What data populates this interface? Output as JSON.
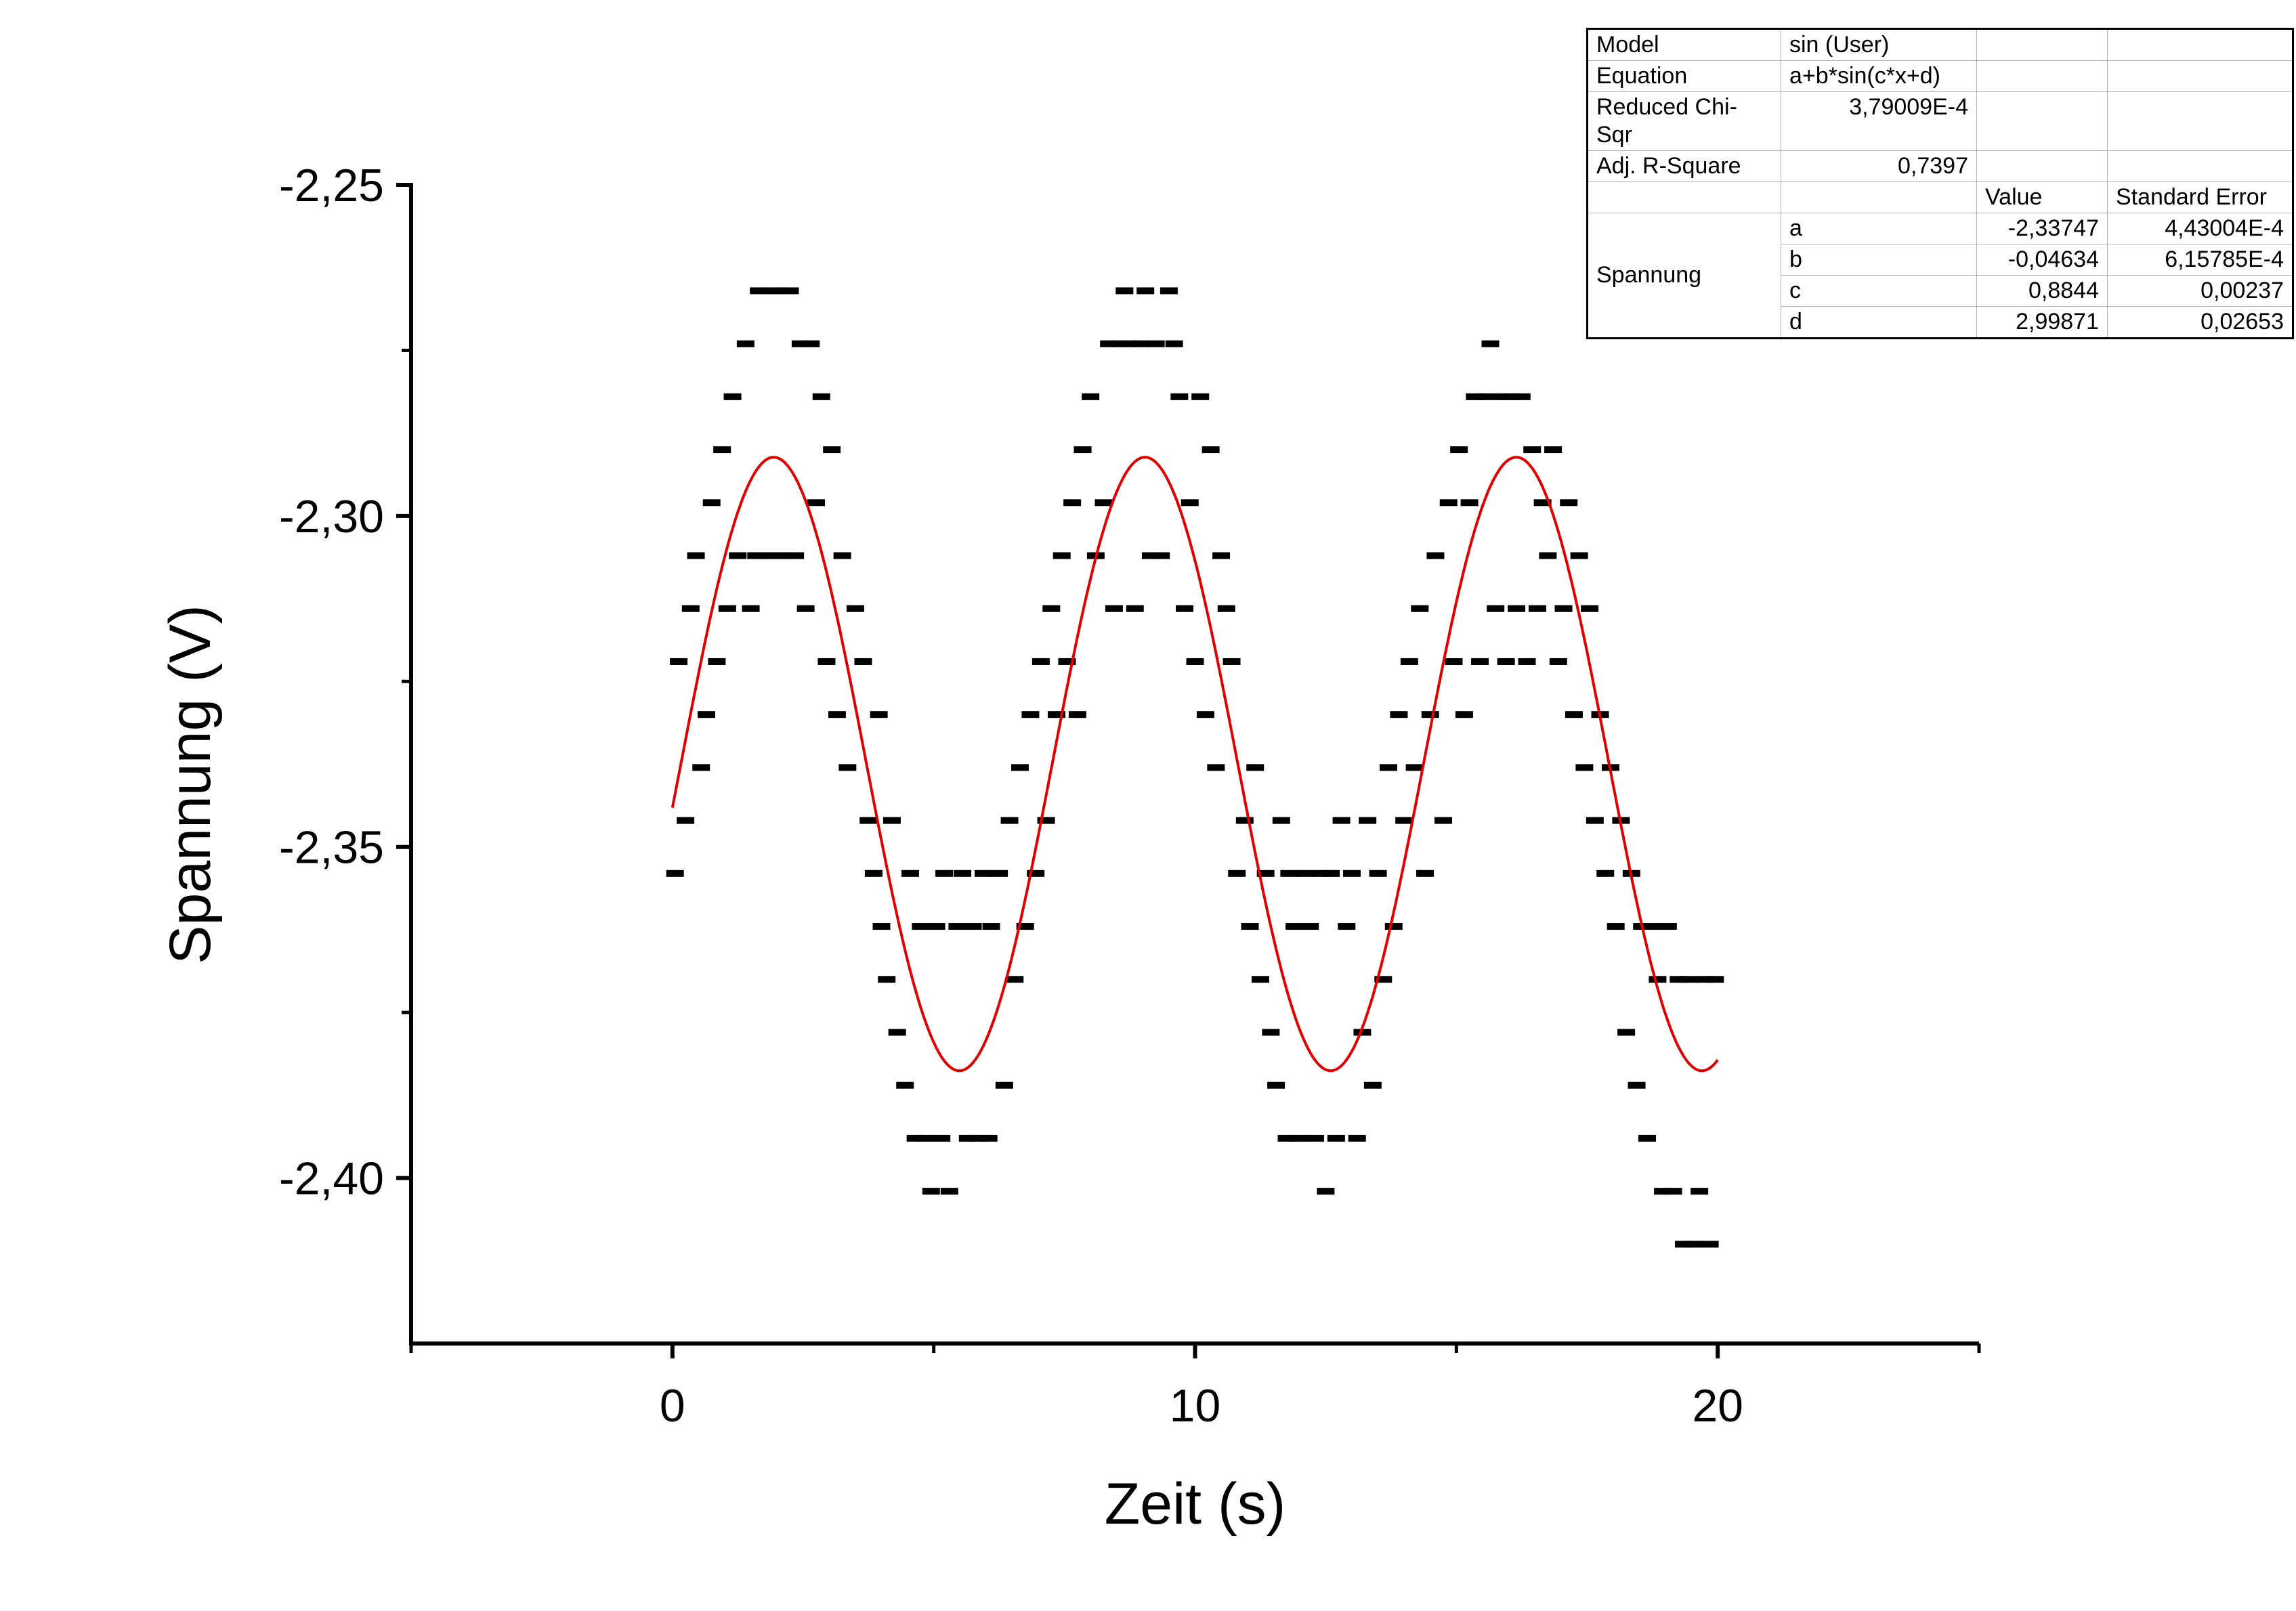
{
  "chart_data": {
    "type": "scatter",
    "xlabel": "Zeit (s)",
    "ylabel": "Spannung (V)",
    "xlim": [
      -5,
      25
    ],
    "ylim": [
      -2.425,
      -2.25
    ],
    "x_ticks": [
      0,
      10,
      20
    ],
    "x_tick_labels": [
      "0",
      "10",
      "20"
    ],
    "x_minor_ticks": [
      -5,
      5,
      15,
      25
    ],
    "y_ticks": [
      -2.25,
      -2.3,
      -2.35,
      -2.4
    ],
    "y_tick_labels": [
      "-2,25",
      "-2,30",
      "-2,35",
      "-2,40"
    ],
    "y_minor_ticks": [
      -2.275,
      -2.325,
      -2.375
    ],
    "grid": false,
    "series": [
      {
        "name": "Spannung",
        "marker": "dash",
        "color": "#000000",
        "points": [
          [
            0.05,
            -2.354
          ],
          [
            0.12,
            -2.322
          ],
          [
            0.25,
            -2.346
          ],
          [
            0.35,
            -2.314
          ],
          [
            0.45,
            -2.306
          ],
          [
            0.55,
            -2.338
          ],
          [
            0.65,
            -2.33
          ],
          [
            0.75,
            -2.298
          ],
          [
            0.85,
            -2.322
          ],
          [
            0.95,
            -2.29
          ],
          [
            1.05,
            -2.314
          ],
          [
            1.15,
            -2.282
          ],
          [
            1.25,
            -2.306
          ],
          [
            1.4,
            -2.274
          ],
          [
            1.5,
            -2.314
          ],
          [
            1.6,
            -2.306
          ],
          [
            1.65,
            -2.266
          ],
          [
            1.75,
            -2.306
          ],
          [
            1.85,
            -2.266
          ],
          [
            1.95,
            -2.306
          ],
          [
            2.05,
            -2.266
          ],
          [
            2.15,
            -2.306
          ],
          [
            2.25,
            -2.266
          ],
          [
            2.35,
            -2.306
          ],
          [
            2.45,
            -2.274
          ],
          [
            2.55,
            -2.314
          ],
          [
            2.65,
            -2.274
          ],
          [
            2.75,
            -2.298
          ],
          [
            2.85,
            -2.282
          ],
          [
            2.95,
            -2.322
          ],
          [
            3.05,
            -2.29
          ],
          [
            3.15,
            -2.33
          ],
          [
            3.25,
            -2.306
          ],
          [
            3.35,
            -2.338
          ],
          [
            3.5,
            -2.314
          ],
          [
            3.65,
            -2.322
          ],
          [
            3.75,
            -2.346
          ],
          [
            3.85,
            -2.354
          ],
          [
            3.95,
            -2.33
          ],
          [
            4.0,
            -2.362
          ],
          [
            4.1,
            -2.37
          ],
          [
            4.2,
            -2.346
          ],
          [
            4.3,
            -2.378
          ],
          [
            4.45,
            -2.386
          ],
          [
            4.55,
            -2.354
          ],
          [
            4.65,
            -2.394
          ],
          [
            4.75,
            -2.362
          ],
          [
            4.85,
            -2.394
          ],
          [
            4.95,
            -2.402
          ],
          [
            5.05,
            -2.362
          ],
          [
            5.15,
            -2.394
          ],
          [
            5.2,
            -2.354
          ],
          [
            5.3,
            -2.402
          ],
          [
            5.45,
            -2.362
          ],
          [
            5.55,
            -2.354
          ],
          [
            5.65,
            -2.394
          ],
          [
            5.75,
            -2.362
          ],
          [
            5.85,
            -2.394
          ],
          [
            5.95,
            -2.354
          ],
          [
            6.05,
            -2.394
          ],
          [
            6.1,
            -2.362
          ],
          [
            6.25,
            -2.354
          ],
          [
            6.35,
            -2.386
          ],
          [
            6.45,
            -2.346
          ],
          [
            6.55,
            -2.37
          ],
          [
            6.65,
            -2.338
          ],
          [
            6.75,
            -2.362
          ],
          [
            6.85,
            -2.33
          ],
          [
            6.95,
            -2.354
          ],
          [
            7.05,
            -2.322
          ],
          [
            7.15,
            -2.346
          ],
          [
            7.25,
            -2.314
          ],
          [
            7.35,
            -2.33
          ],
          [
            7.45,
            -2.306
          ],
          [
            7.55,
            -2.322
          ],
          [
            7.65,
            -2.298
          ],
          [
            7.75,
            -2.33
          ],
          [
            7.85,
            -2.29
          ],
          [
            8.0,
            -2.282
          ],
          [
            8.1,
            -2.306
          ],
          [
            8.25,
            -2.298
          ],
          [
            8.35,
            -2.274
          ],
          [
            8.45,
            -2.314
          ],
          [
            8.55,
            -2.274
          ],
          [
            8.65,
            -2.266
          ],
          [
            8.75,
            -2.274
          ],
          [
            8.85,
            -2.314
          ],
          [
            8.95,
            -2.274
          ],
          [
            9.05,
            -2.266
          ],
          [
            9.15,
            -2.306
          ],
          [
            9.25,
            -2.274
          ],
          [
            9.35,
            -2.306
          ],
          [
            9.5,
            -2.266
          ],
          [
            9.6,
            -2.274
          ],
          [
            9.7,
            -2.282
          ],
          [
            9.8,
            -2.314
          ],
          [
            9.9,
            -2.298
          ],
          [
            10.0,
            -2.322
          ],
          [
            10.1,
            -2.282
          ],
          [
            10.2,
            -2.33
          ],
          [
            10.3,
            -2.29
          ],
          [
            10.4,
            -2.338
          ],
          [
            10.5,
            -2.306
          ],
          [
            10.6,
            -2.314
          ],
          [
            10.7,
            -2.322
          ],
          [
            10.8,
            -2.354
          ],
          [
            10.95,
            -2.346
          ],
          [
            11.05,
            -2.362
          ],
          [
            11.15,
            -2.338
          ],
          [
            11.25,
            -2.37
          ],
          [
            11.35,
            -2.354
          ],
          [
            11.45,
            -2.378
          ],
          [
            11.55,
            -2.386
          ],
          [
            11.65,
            -2.346
          ],
          [
            11.75,
            -2.394
          ],
          [
            11.8,
            -2.354
          ],
          [
            11.9,
            -2.362
          ],
          [
            12.0,
            -2.394
          ],
          [
            12.1,
            -2.354
          ],
          [
            12.2,
            -2.362
          ],
          [
            12.3,
            -2.394
          ],
          [
            12.4,
            -2.354
          ],
          [
            12.5,
            -2.402
          ],
          [
            12.6,
            -2.354
          ],
          [
            12.7,
            -2.394
          ],
          [
            12.8,
            -2.346
          ],
          [
            12.9,
            -2.362
          ],
          [
            13.0,
            -2.354
          ],
          [
            13.1,
            -2.394
          ],
          [
            13.2,
            -2.378
          ],
          [
            13.3,
            -2.346
          ],
          [
            13.4,
            -2.386
          ],
          [
            13.5,
            -2.354
          ],
          [
            13.6,
            -2.37
          ],
          [
            13.7,
            -2.338
          ],
          [
            13.8,
            -2.362
          ],
          [
            13.9,
            -2.33
          ],
          [
            14.0,
            -2.346
          ],
          [
            14.1,
            -2.322
          ],
          [
            14.2,
            -2.338
          ],
          [
            14.3,
            -2.314
          ],
          [
            14.4,
            -2.354
          ],
          [
            14.5,
            -2.33
          ],
          [
            14.6,
            -2.306
          ],
          [
            14.75,
            -2.346
          ],
          [
            14.85,
            -2.298
          ],
          [
            14.95,
            -2.322
          ],
          [
            15.05,
            -2.29
          ],
          [
            15.15,
            -2.33
          ],
          [
            15.25,
            -2.298
          ],
          [
            15.35,
            -2.282
          ],
          [
            15.45,
            -2.322
          ],
          [
            15.55,
            -2.282
          ],
          [
            15.65,
            -2.274
          ],
          [
            15.75,
            -2.314
          ],
          [
            15.85,
            -2.282
          ],
          [
            15.95,
            -2.322
          ],
          [
            16.05,
            -2.282
          ],
          [
            16.15,
            -2.314
          ],
          [
            16.25,
            -2.282
          ],
          [
            16.35,
            -2.322
          ],
          [
            16.45,
            -2.29
          ],
          [
            16.55,
            -2.314
          ],
          [
            16.65,
            -2.298
          ],
          [
            16.75,
            -2.306
          ],
          [
            16.85,
            -2.29
          ],
          [
            16.95,
            -2.322
          ],
          [
            17.05,
            -2.314
          ],
          [
            17.15,
            -2.298
          ],
          [
            17.25,
            -2.33
          ],
          [
            17.35,
            -2.306
          ],
          [
            17.45,
            -2.338
          ],
          [
            17.55,
            -2.314
          ],
          [
            17.65,
            -2.346
          ],
          [
            17.75,
            -2.33
          ],
          [
            17.85,
            -2.354
          ],
          [
            17.95,
            -2.338
          ],
          [
            18.05,
            -2.362
          ],
          [
            18.15,
            -2.346
          ],
          [
            18.25,
            -2.378
          ],
          [
            18.35,
            -2.354
          ],
          [
            18.45,
            -2.386
          ],
          [
            18.55,
            -2.362
          ],
          [
            18.65,
            -2.394
          ],
          [
            18.75,
            -2.362
          ],
          [
            18.85,
            -2.37
          ],
          [
            18.95,
            -2.402
          ],
          [
            19.05,
            -2.362
          ],
          [
            19.15,
            -2.402
          ],
          [
            19.25,
            -2.37
          ],
          [
            19.35,
            -2.41
          ],
          [
            19.45,
            -2.37
          ],
          [
            19.55,
            -2.41
          ],
          [
            19.65,
            -2.402
          ],
          [
            19.75,
            -2.37
          ],
          [
            19.85,
            -2.41
          ],
          [
            19.95,
            -2.37
          ]
        ]
      },
      {
        "name": "sin (User)",
        "type": "line",
        "color": "#e00000",
        "model": {
          "a": -2.33747,
          "b": -0.04634,
          "c": 0.8844,
          "d": 2.99871
        },
        "x_range": [
          0,
          20
        ]
      }
    ],
    "fit_table": {
      "rows": [
        {
          "label": "Model",
          "value": "sin (User)"
        },
        {
          "label": "Equation",
          "value": "a+b*sin(c*x+d)"
        },
        {
          "label": "Reduced Chi-Sqr",
          "value": "3,79009E-4"
        },
        {
          "label": "Adj. R-Square",
          "value": "0,7397"
        }
      ],
      "header": {
        "value": "Value",
        "error": "Standard Error"
      },
      "group_label": "Spannung",
      "params": [
        {
          "name": "a",
          "value": "-2,33747",
          "error": "4,43004E-4"
        },
        {
          "name": "b",
          "value": "-0,04634",
          "error": "6,15785E-4"
        },
        {
          "name": "c",
          "value": "0,8844",
          "error": "0,00237"
        },
        {
          "name": "d",
          "value": "2,99871",
          "error": "0,02653"
        }
      ]
    }
  }
}
